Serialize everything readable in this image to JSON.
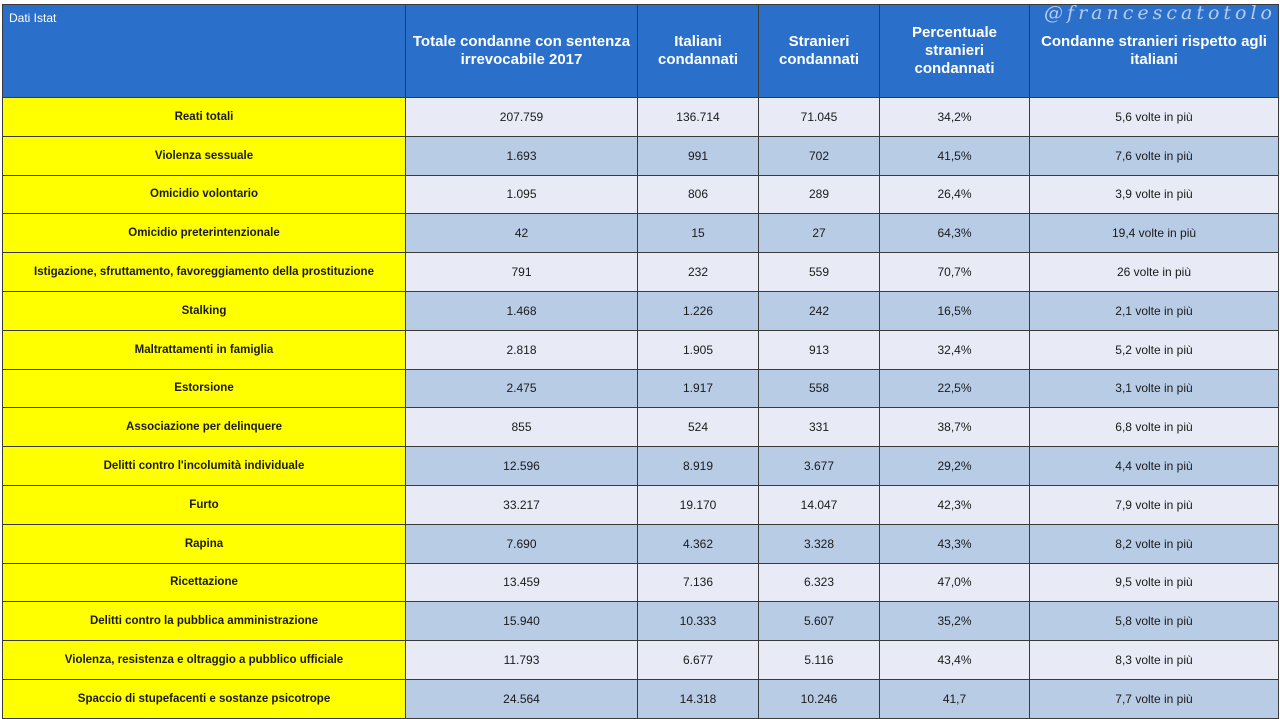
{
  "source_label": "Dati Istat",
  "watermark": "@francescatotolo",
  "columns": [
    "Totale condanne con sentenza irrevocabile 2017",
    "Italiani condannati",
    "Stranieri condannati",
    "Percentuale stranieri condannati",
    "Condanne stranieri rispetto agli italiani"
  ],
  "rows": [
    {
      "crime": "Reati totali",
      "totale": "207.759",
      "italiani": "136.714",
      "stranieri": "71.045",
      "percentuale": "34,2%",
      "rapporto": "5,6 volte in più"
    },
    {
      "crime": "Violenza sessuale",
      "totale": "1.693",
      "italiani": "991",
      "stranieri": "702",
      "percentuale": "41,5%",
      "rapporto": "7,6 volte in più"
    },
    {
      "crime": "Omicidio volontario",
      "totale": "1.095",
      "italiani": "806",
      "stranieri": "289",
      "percentuale": "26,4%",
      "rapporto": "3,9 volte in più"
    },
    {
      "crime": "Omicidio preterintenzionale",
      "totale": "42",
      "italiani": "15",
      "stranieri": "27",
      "percentuale": "64,3%",
      "rapporto": "19,4 volte in più"
    },
    {
      "crime": "Istigazione, sfruttamento, favoreggiamento della prostituzione",
      "totale": "791",
      "italiani": "232",
      "stranieri": "559",
      "percentuale": "70,7%",
      "rapporto": "26 volte in più"
    },
    {
      "crime": "Stalking",
      "totale": "1.468",
      "italiani": "1.226",
      "stranieri": "242",
      "percentuale": "16,5%",
      "rapporto": "2,1 volte in più"
    },
    {
      "crime": "Maltrattamenti in famiglia",
      "totale": "2.818",
      "italiani": "1.905",
      "stranieri": "913",
      "percentuale": "32,4%",
      "rapporto": "5,2 volte in più"
    },
    {
      "crime": "Estorsione",
      "totale": "2.475",
      "italiani": "1.917",
      "stranieri": "558",
      "percentuale": "22,5%",
      "rapporto": "3,1 volte in più"
    },
    {
      "crime": "Associazione per delinquere",
      "totale": "855",
      "italiani": "524",
      "stranieri": "331",
      "percentuale": "38,7%",
      "rapporto": "6,8 volte in più"
    },
    {
      "crime": "Delitti contro l'incolumità individuale",
      "totale": "12.596",
      "italiani": "8.919",
      "stranieri": "3.677",
      "percentuale": "29,2%",
      "rapporto": "4,4 volte in più"
    },
    {
      "crime": "Furto",
      "totale": "33.217",
      "italiani": "19.170",
      "stranieri": "14.047",
      "percentuale": "42,3%",
      "rapporto": "7,9 volte in più"
    },
    {
      "crime": "Rapina",
      "totale": "7.690",
      "italiani": "4.362",
      "stranieri": "3.328",
      "percentuale": "43,3%",
      "rapporto": "8,2 volte in più"
    },
    {
      "crime": "Ricettazione",
      "totale": "13.459",
      "italiani": "7.136",
      "stranieri": "6.323",
      "percentuale": "47,0%",
      "rapporto": "9,5 volte in più"
    },
    {
      "crime": "Delitti contro la pubblica amministrazione",
      "totale": "15.940",
      "italiani": "10.333",
      "stranieri": "5.607",
      "percentuale": "35,2%",
      "rapporto": "5,8 volte in più"
    },
    {
      "crime": "Violenza, resistenza e oltraggio a pubblico ufficiale",
      "totale": "11.793",
      "italiani": "6.677",
      "stranieri": "5.116",
      "percentuale": "43,4%",
      "rapporto": "8,3 volte in più"
    },
    {
      "crime": "Spaccio di stupefacenti e sostanze psicotrope",
      "totale": "24.564",
      "italiani": "14.318",
      "stranieri": "10.246",
      "percentuale": "41,7",
      "rapporto": "7,7 volte in più"
    }
  ],
  "colors": {
    "header_bg": "#2a6fc9",
    "label_bg": "#ffff00",
    "row_light": "#e8ebf5",
    "row_dark": "#b8cce6"
  }
}
